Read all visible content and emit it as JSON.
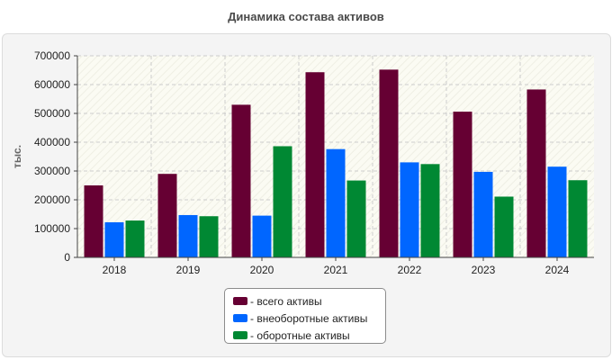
{
  "chart_data": {
    "type": "bar",
    "title": "Динамика состава активов",
    "xlabel": "",
    "ylabel": "тыс.",
    "categories": [
      "2018",
      "2019",
      "2020",
      "2021",
      "2022",
      "2023",
      "2024"
    ],
    "ylim": [
      0,
      700000
    ],
    "yticks": [
      "0",
      "100000",
      "200000",
      "300000",
      "400000",
      "500000",
      "600000",
      "700000"
    ],
    "grid": true,
    "legend_position": "bottom-center",
    "series": [
      {
        "name": "- всего активы",
        "color": "#660033",
        "values": [
          250000,
          290000,
          530000,
          643000,
          652000,
          506000,
          583000
        ]
      },
      {
        "name": "- внеоборотные активы",
        "color": "#0066ff",
        "values": [
          122000,
          147000,
          145000,
          376000,
          330000,
          297000,
          315000
        ]
      },
      {
        "name": "- оборотные активы",
        "color": "#008833",
        "values": [
          128000,
          143000,
          386000,
          267000,
          324000,
          211000,
          268000
        ]
      }
    ]
  }
}
